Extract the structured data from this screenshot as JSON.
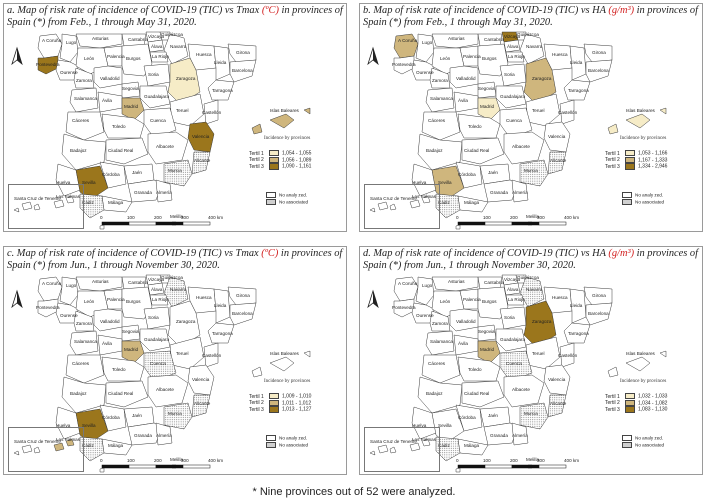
{
  "footnote": "* Nine provinces out of 52 were analyzed.",
  "colors": {
    "temp_t1": "#f6ecc7",
    "temp_t2": "#cfb67d",
    "temp_t3": "#9b761c",
    "ha_t1": "#e2eee4",
    "ha_t2": "#7ccf86",
    "ha_t3": "#0b4a20",
    "no_analyzed": "#ffffff"
  },
  "common": {
    "legend_title": "Incidence by provinces",
    "tertile_labels": [
      "Tertil 1",
      "Tertil 2",
      "Tertil 3"
    ],
    "no_analyzed": "No analy zed.",
    "no_associated": "No associated",
    "scale_labels": [
      "0",
      "100",
      "200",
      "300",
      "400 km"
    ],
    "canary_labels": [
      "Santa Cruz de Tenerife",
      "Las Palmas"
    ],
    "province_labels": [
      "A Coruña",
      "Lugo",
      "Asturias",
      "Cantabria",
      "Vizcaya",
      "Guipúzcoa",
      "Navarra",
      "Álava",
      "La Rioja",
      "Huesca",
      "Girona",
      "Lleida",
      "Barcelona",
      "Tarragona",
      "Pontevedra",
      "Ourense",
      "León",
      "Palencia",
      "Burgos",
      "Zaragoza",
      "Soria",
      "Teruel",
      "Castellón",
      "Valencia",
      "Alicante",
      "Murcia",
      "Albacete",
      "Cuenca",
      "Guadalajara",
      "Segovia",
      "Valladolid",
      "Zamora",
      "Salamanca",
      "Ávila",
      "Madrid",
      "Toledo",
      "Cáceres",
      "Badajoz",
      "Ciudad Real",
      "Jaén",
      "Córdoba",
      "Sevilla",
      "Huelva",
      "Cádiz",
      "Málaga",
      "Granada",
      "Almería",
      "Islas Baleares",
      "Ceuta",
      "Melilla"
    ]
  },
  "panels": [
    {
      "id": "a",
      "title_main": "a.  Map of risk rate of incidence of COVID-19 (TIC) vs Tmax ",
      "title_unit": "(ºC)",
      "title_rest": " in provinces of Spain (*) from Feb., 1 through May 31, 2020.",
      "legend_ranges": [
        "1,054 - 1,055",
        "1,056 - 1,089",
        "1,090 - 1,161"
      ],
      "highlighted": [
        {
          "province": "Pontevedra",
          "tertile": 3
        },
        {
          "province": "Zaragoza",
          "tertile": 1
        },
        {
          "province": "Madrid",
          "tertile": 2
        },
        {
          "province": "Valencia",
          "tertile": 3
        },
        {
          "province": "Islas Baleares",
          "tertile": 2
        },
        {
          "province": "Sevilla",
          "tertile": 3
        }
      ]
    },
    {
      "id": "b",
      "title_main": "b.  Map of risk rate of incidence of COVID-19 (TIC) vs HA ",
      "title_unit": "(g/m³)",
      "title_rest": " in provinces of Spain (*) from Feb., 1 through May 31, 2020.",
      "legend_ranges": [
        "1,053 - 1,166",
        "1,167 - 1,333",
        "1,334 - 2,946"
      ],
      "highlighted": [
        {
          "province": "A Coruña",
          "tertile": 2
        },
        {
          "province": "Vizcaya",
          "tertile": 3
        },
        {
          "province": "Zaragoza",
          "tertile": 2
        },
        {
          "province": "Madrid",
          "tertile": 1
        },
        {
          "province": "Islas Baleares",
          "tertile": 1
        },
        {
          "province": "Sevilla",
          "tertile": 2
        }
      ]
    },
    {
      "id": "c",
      "title_main": "c.  Map of risk rate of incidence of COVID-19 (TIC) vs Tmax ",
      "title_unit": "(ºC)",
      "title_rest": " in provinces of Spain (*) from Jun., 1 through November 30, 2020.",
      "legend_ranges": [
        "1,009 - 1,010",
        "1,011 - 1,012",
        "1,013 - 1,127"
      ],
      "highlighted": [
        {
          "province": "Madrid",
          "tertile": 2
        },
        {
          "province": "Sevilla",
          "tertile": 3
        },
        {
          "province": "Las Palmas",
          "tertile": 2
        }
      ]
    },
    {
      "id": "d",
      "title_main": "d.  Map of risk rate of incidence of COVID-19 (TIC) vs HA ",
      "title_unit": "(g/m³)",
      "title_rest": " in provinces of Spain (*) from Jun., 1 through November 30, 2020.",
      "legend_ranges": [
        "1,032 - 1,033",
        "1,034 - 1,082",
        "1,083 - 1,130"
      ],
      "highlighted": [
        {
          "province": "Zaragoza",
          "tertile": 3
        },
        {
          "province": "Madrid",
          "tertile": 2
        }
      ]
    }
  ]
}
